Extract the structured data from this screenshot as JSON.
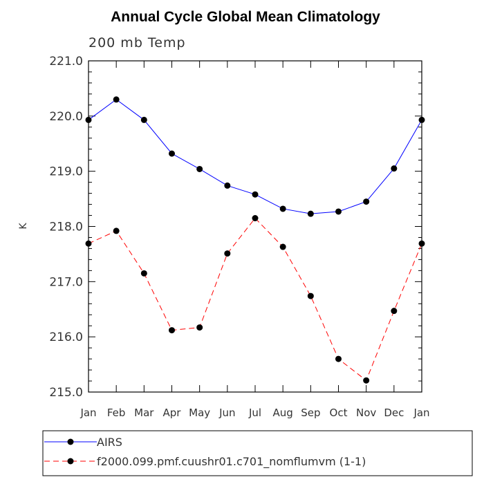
{
  "chart_data": {
    "type": "line",
    "title": "Annual Cycle Global Mean Climatology",
    "subtitle": "200 mb Temp",
    "xlabel": "",
    "ylabel": "K",
    "categories": [
      "Jan",
      "Feb",
      "Mar",
      "Apr",
      "May",
      "Jun",
      "Jul",
      "Aug",
      "Sep",
      "Oct",
      "Nov",
      "Dec",
      "Jan"
    ],
    "ylim": [
      215.0,
      221.0
    ],
    "yticks": [
      "215.0",
      "216.0",
      "217.0",
      "218.0",
      "219.0",
      "220.0",
      "221.0"
    ],
    "series": [
      {
        "name": "AIRS",
        "color": "#0000ff",
        "dash": "solid",
        "values": [
          219.93,
          220.3,
          219.93,
          219.32,
          219.04,
          218.74,
          218.58,
          218.32,
          218.23,
          218.27,
          218.45,
          219.05,
          219.93
        ]
      },
      {
        "name": "f2000.099.pmf.cuushr01.c701_nomflumvm (1-1)",
        "color": "#ff0000",
        "dash": "dashed",
        "values": [
          217.69,
          217.92,
          217.15,
          216.12,
          216.17,
          217.51,
          218.15,
          217.63,
          216.74,
          215.6,
          215.21,
          216.47,
          217.69
        ]
      }
    ],
    "legend": {
      "placement": "bottom"
    }
  }
}
